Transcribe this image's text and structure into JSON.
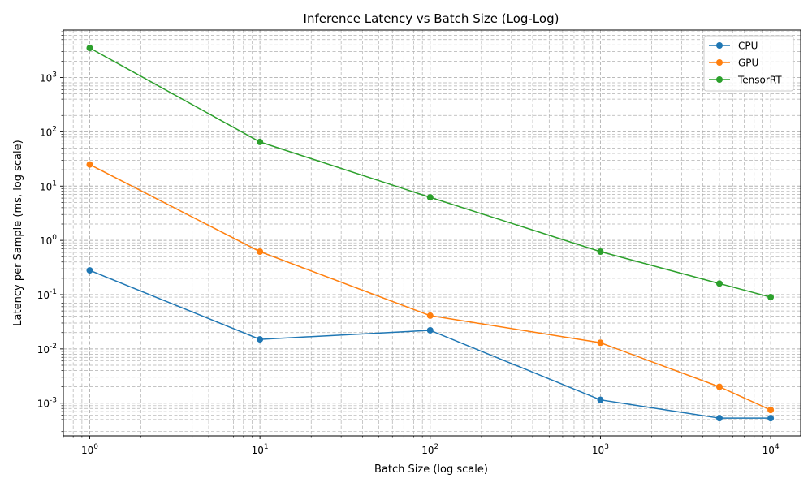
{
  "chart_data": {
    "type": "line",
    "title": "Inference Latency vs Batch Size (Log-Log)",
    "xlabel": "Batch Size (log scale)",
    "ylabel": "Latency per Sample (ms, log scale)",
    "xscale": "log",
    "yscale": "log",
    "xlim": [
      0.7,
      15000
    ],
    "ylim": [
      0.00025,
      7500
    ],
    "x": [
      1,
      10,
      100,
      1000,
      5000,
      10000
    ],
    "xticks": [
      1,
      10,
      100,
      1000,
      10000
    ],
    "xtick_labels": [
      "10^0",
      "10^1",
      "10^2",
      "10^3",
      "10^4"
    ],
    "yticks": [
      0.001,
      0.01,
      0.1,
      1,
      10,
      100,
      1000
    ],
    "ytick_labels": [
      "10^-3",
      "10^-2",
      "10^-1",
      "10^0",
      "10^1",
      "10^2",
      "10^3"
    ],
    "grid": "both (major and minor, dashed)",
    "legend_position": "upper right",
    "series": [
      {
        "name": "CPU",
        "color": "#1f77b4",
        "marker": "circle",
        "values": [
          0.28,
          0.015,
          0.022,
          0.00115,
          0.00053,
          0.00053
        ]
      },
      {
        "name": "GPU",
        "color": "#ff7f0e",
        "marker": "circle",
        "values": [
          25,
          0.62,
          0.041,
          0.013,
          0.002,
          0.00075
        ]
      },
      {
        "name": "TensorRT",
        "color": "#2ca02c",
        "marker": "circle",
        "values": [
          3500,
          65,
          6.2,
          0.62,
          0.16,
          0.09
        ]
      }
    ]
  }
}
